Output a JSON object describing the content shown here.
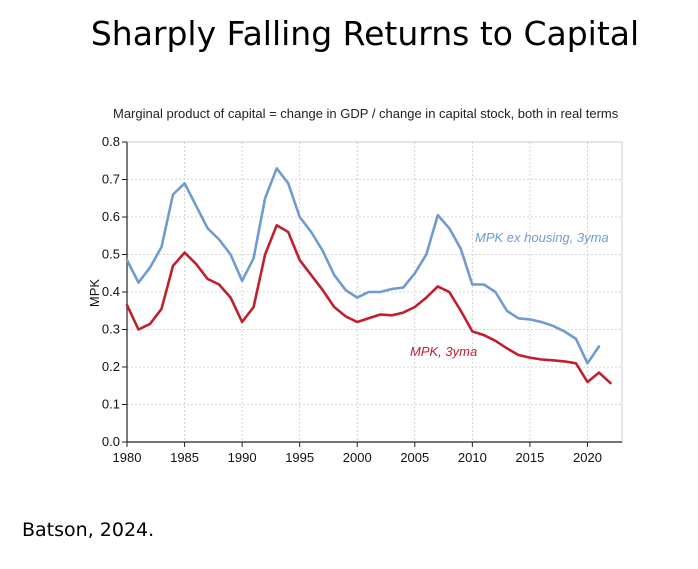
{
  "page": {
    "title": "Sharply Falling Returns to Capital",
    "source": "Batson, 2024."
  },
  "chart_data": {
    "type": "line",
    "subtitle": "Marginal product of capital = change in GDP / change in capital stock, both in real terms",
    "ylabel": "MPK",
    "xlabel": "",
    "xlim": [
      1980,
      2023
    ],
    "ylim": [
      0,
      0.8
    ],
    "xticks": [
      1980,
      1985,
      1990,
      1995,
      2000,
      2005,
      2010,
      2015,
      2020
    ],
    "xtick_labels": [
      "1980",
      "1985",
      "1990",
      "1995",
      "2000",
      "2005",
      "2010",
      "2015",
      "2020"
    ],
    "yticks": [
      0,
      0.1,
      0.2,
      0.3,
      0.4,
      0.5,
      0.6,
      0.7,
      0.8
    ],
    "ytick_labels": [
      "0.0",
      "0.1",
      "0.2",
      "0.3",
      "0.4",
      "0.5",
      "0.6",
      "0.7",
      "0.8"
    ],
    "grid": true,
    "series": [
      {
        "name": "MPK ex housing, 3yma",
        "color": "#6f9bd1",
        "x": [
          1980,
          1981,
          1982,
          1983,
          1984,
          1985,
          1986,
          1987,
          1988,
          1989,
          1990,
          1991,
          1992,
          1993,
          1994,
          1995,
          1996,
          1997,
          1998,
          1999,
          2000,
          2001,
          2002,
          2003,
          2004,
          2005,
          2006,
          2007,
          2008,
          2009,
          2010,
          2011,
          2012,
          2013,
          2014,
          2015,
          2016,
          2017,
          2018,
          2019,
          2020,
          2021
        ],
        "values": [
          0.485,
          0.425,
          0.465,
          0.52,
          0.66,
          0.69,
          0.63,
          0.57,
          0.54,
          0.5,
          0.43,
          0.49,
          0.65,
          0.73,
          0.69,
          0.6,
          0.56,
          0.51,
          0.445,
          0.405,
          0.385,
          0.4,
          0.4,
          0.408,
          0.412,
          0.45,
          0.5,
          0.605,
          0.57,
          0.515,
          0.42,
          0.42,
          0.4,
          0.35,
          0.33,
          0.327,
          0.32,
          0.31,
          0.295,
          0.275,
          0.21,
          0.255
        ]
      },
      {
        "name": "MPK, 3yma",
        "color": "#c0202e",
        "x": [
          1980,
          1981,
          1982,
          1983,
          1984,
          1985,
          1986,
          1987,
          1988,
          1989,
          1990,
          1991,
          1992,
          1993,
          1994,
          1995,
          1996,
          1997,
          1998,
          1999,
          2000,
          2001,
          2002,
          2003,
          2004,
          2005,
          2006,
          2007,
          2008,
          2009,
          2010,
          2011,
          2012,
          2013,
          2014,
          2015,
          2016,
          2017,
          2018,
          2019,
          2020,
          2021,
          2022
        ],
        "values": [
          0.365,
          0.3,
          0.315,
          0.355,
          0.47,
          0.505,
          0.475,
          0.435,
          0.42,
          0.385,
          0.32,
          0.36,
          0.5,
          0.578,
          0.56,
          0.485,
          0.445,
          0.405,
          0.36,
          0.335,
          0.32,
          0.33,
          0.34,
          0.338,
          0.345,
          0.36,
          0.385,
          0.415,
          0.4,
          0.35,
          0.295,
          0.285,
          0.27,
          0.25,
          0.232,
          0.225,
          0.22,
          0.218,
          0.215,
          0.21,
          0.16,
          0.185,
          0.157
        ]
      }
    ],
    "annotations": [
      {
        "text": "MPK ex housing, 3yma",
        "series": 0
      },
      {
        "text": "MPK, 3yma",
        "series": 1
      }
    ]
  }
}
